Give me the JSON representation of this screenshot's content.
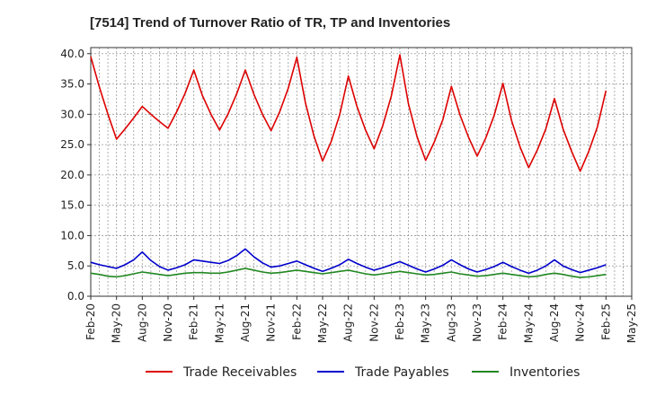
{
  "chart_data": {
    "type": "line",
    "title": "[7514]  Trend of Turnover Ratio of TR, TP and Inventories",
    "xlabel": "",
    "ylabel": "",
    "ylim": [
      0,
      41
    ],
    "yticks": [
      "0.0",
      "5.0",
      "10.0",
      "15.0",
      "20.0",
      "25.0",
      "30.0",
      "35.0",
      "40.0"
    ],
    "xticks": [
      "Feb-20",
      "May-20",
      "Aug-20",
      "Nov-20",
      "Feb-21",
      "May-21",
      "Aug-21",
      "Nov-21",
      "Feb-22",
      "May-22",
      "Aug-22",
      "Nov-22",
      "Feb-23",
      "May-23",
      "Aug-23",
      "Nov-23",
      "Feb-24",
      "May-24",
      "Aug-24",
      "Nov-24",
      "Feb-25",
      "May-25"
    ],
    "grid": true,
    "legend_position": "bottom",
    "x": [
      "Feb-20",
      "Mar-20",
      "Apr-20",
      "May-20",
      "Jun-20",
      "Jul-20",
      "Aug-20",
      "Sep-20",
      "Oct-20",
      "Nov-20",
      "Dec-20",
      "Jan-21",
      "Feb-21",
      "Mar-21",
      "Apr-21",
      "May-21",
      "Jun-21",
      "Jul-21",
      "Aug-21",
      "Sep-21",
      "Oct-21",
      "Nov-21",
      "Dec-21",
      "Jan-22",
      "Feb-22",
      "Mar-22",
      "Apr-22",
      "May-22",
      "Jun-22",
      "Jul-22",
      "Aug-22",
      "Sep-22",
      "Oct-22",
      "Nov-22",
      "Dec-22",
      "Jan-23",
      "Feb-23",
      "Mar-23",
      "Apr-23",
      "May-23",
      "Jun-23",
      "Jul-23",
      "Aug-23",
      "Sep-23",
      "Oct-23",
      "Nov-23",
      "Dec-23",
      "Jan-24",
      "Feb-24",
      "Mar-24",
      "Apr-24",
      "May-24",
      "Jun-24",
      "Jul-24",
      "Aug-24",
      "Sep-24",
      "Oct-24",
      "Nov-24",
      "Dec-24",
      "Jan-25",
      "Feb-25"
    ],
    "series": [
      {
        "name": "Trade Receivables",
        "color": "#dd0000",
        "values": [
          39.5,
          34.5,
          30.0,
          25.9,
          27.6,
          29.4,
          31.3,
          30.0,
          28.8,
          27.7,
          30.4,
          33.5,
          37.3,
          33.1,
          30.0,
          27.4,
          30.1,
          33.4,
          37.3,
          33.3,
          30.0,
          27.3,
          30.4,
          34.3,
          39.4,
          31.9,
          26.4,
          22.3,
          25.5,
          30.0,
          36.3,
          31.3,
          27.4,
          24.3,
          28.1,
          33.0,
          39.8,
          31.7,
          26.3,
          22.4,
          25.4,
          29.1,
          34.6,
          29.9,
          26.2,
          23.1,
          26.1,
          29.9,
          35.1,
          29.0,
          24.6,
          21.2,
          24.1,
          27.6,
          32.6,
          27.6,
          23.9,
          20.6,
          23.9,
          27.9,
          33.9
        ]
      },
      {
        "name": "Trade Payables",
        "color": "#0000cc",
        "values": [
          5.6,
          5.2,
          4.9,
          4.6,
          5.2,
          6.0,
          7.3,
          5.9,
          4.9,
          4.3,
          4.7,
          5.2,
          6.0,
          5.8,
          5.6,
          5.4,
          5.9,
          6.7,
          7.8,
          6.5,
          5.5,
          4.8,
          5.0,
          5.4,
          5.8,
          5.2,
          4.6,
          4.1,
          4.6,
          5.2,
          6.1,
          5.4,
          4.8,
          4.3,
          4.7,
          5.2,
          5.7,
          5.1,
          4.5,
          4.0,
          4.5,
          5.1,
          6.0,
          5.2,
          4.5,
          4.0,
          4.4,
          4.9,
          5.6,
          4.9,
          4.3,
          3.8,
          4.3,
          5.0,
          6.0,
          5.0,
          4.4,
          3.9,
          4.3,
          4.7,
          5.2
        ]
      },
      {
        "name": "Inventories",
        "color": "#228822",
        "values": [
          3.8,
          3.6,
          3.3,
          3.2,
          3.4,
          3.7,
          4.0,
          3.8,
          3.6,
          3.4,
          3.6,
          3.8,
          3.9,
          3.9,
          3.8,
          3.8,
          4.0,
          4.3,
          4.6,
          4.3,
          4.0,
          3.8,
          3.9,
          4.1,
          4.3,
          4.1,
          3.9,
          3.7,
          3.9,
          4.1,
          4.3,
          4.0,
          3.7,
          3.5,
          3.7,
          3.9,
          4.1,
          3.9,
          3.7,
          3.5,
          3.6,
          3.8,
          4.0,
          3.7,
          3.5,
          3.3,
          3.4,
          3.6,
          3.8,
          3.6,
          3.4,
          3.2,
          3.3,
          3.6,
          3.8,
          3.6,
          3.3,
          3.1,
          3.2,
          3.4,
          3.6
        ]
      }
    ]
  }
}
